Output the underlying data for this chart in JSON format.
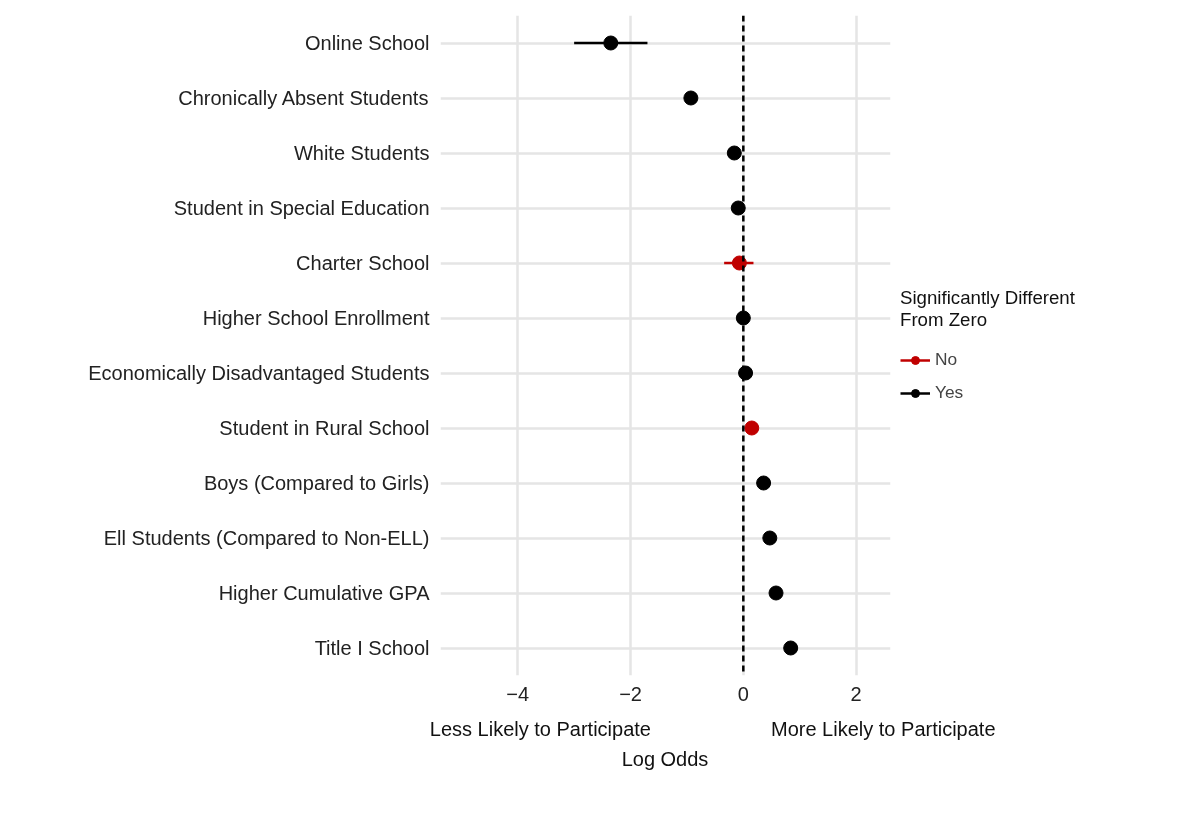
{
  "chart_data": {
    "type": "scatter",
    "orientation": "horizontal",
    "categories": [
      "Online School",
      "Chronically Absent Students",
      "White Students",
      "Student in Special Education",
      "Charter School",
      "Higher School Enrollment",
      "Economically Disadvantaged Students",
      "Student in Rural School",
      "Boys (Compared to Girls)",
      "Ell Students (Compared to Non-ELL)",
      "Higher Cumulative GPA",
      "Title I School"
    ],
    "series": [
      {
        "name": "No",
        "color": "#c00000",
        "values": [
          null,
          null,
          null,
          null,
          -0.07,
          null,
          null,
          0.15,
          null,
          null,
          null,
          null
        ],
        "errors": [
          null,
          null,
          null,
          null,
          [
            -0.34,
            0.18
          ],
          null,
          null,
          null,
          null,
          null,
          null,
          null
        ]
      },
      {
        "name": "Yes",
        "color": "#000000",
        "values": [
          -2.35,
          -0.93,
          -0.16,
          -0.09,
          null,
          0.0,
          0.04,
          null,
          0.36,
          0.47,
          0.58,
          0.84
        ],
        "errors": [
          [
            -3.0,
            -1.7
          ],
          null,
          null,
          null,
          null,
          null,
          null,
          null,
          null,
          null,
          null,
          null
        ]
      }
    ],
    "xlim": [
      -5.37,
      2.61
    ],
    "xticks": [
      -4,
      -2,
      0,
      2
    ],
    "xlabel": "Log Odds",
    "annotations": [
      "Less Likely to Participate",
      "More Likely to Participate"
    ],
    "legend_title": "Significantly Different\nFrom Zero",
    "legend": "right",
    "ref_lines": [
      {
        "axis": "x",
        "value": 0,
        "color": "#000000",
        "line_style": "dashed"
      }
    ],
    "grid": true,
    "marker": "circle"
  }
}
